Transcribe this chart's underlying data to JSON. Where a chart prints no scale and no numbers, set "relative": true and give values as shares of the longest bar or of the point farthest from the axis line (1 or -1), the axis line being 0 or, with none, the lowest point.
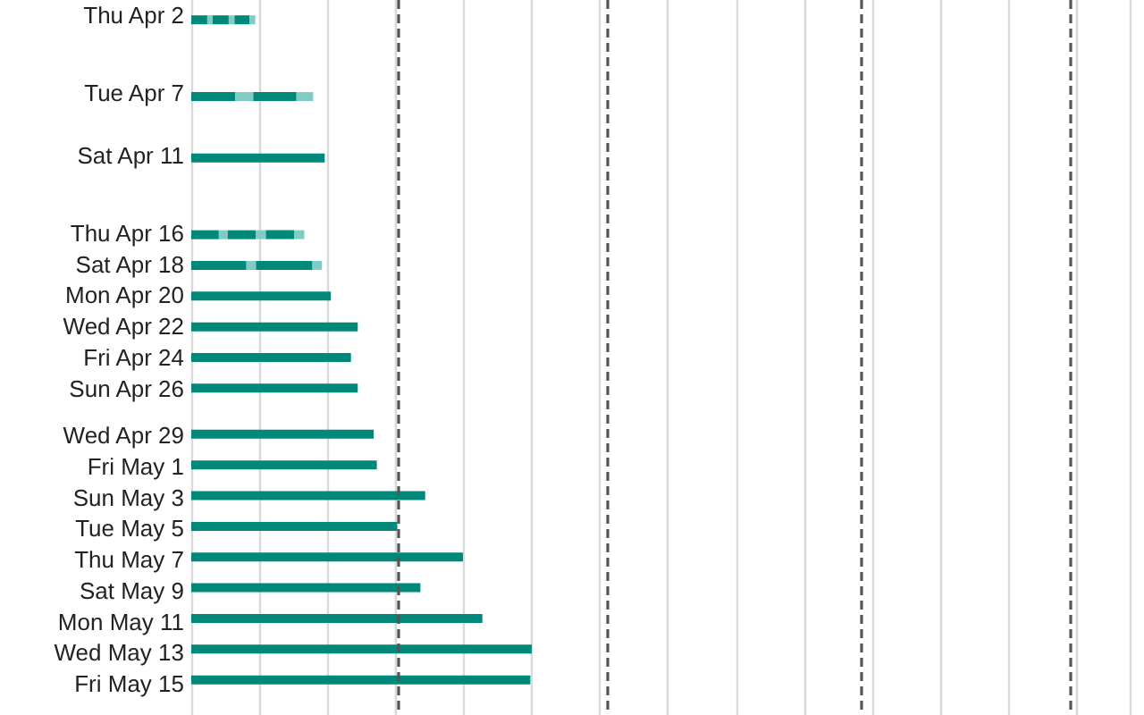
{
  "chart_data": {
    "type": "bar",
    "orientation": "horizontal",
    "stacked": true,
    "relative": true,
    "x": [
      "--04-02",
      "--04-07",
      "--04-11",
      "--04-16",
      "--04-18",
      "--04-20",
      "--04-22",
      "--04-24",
      "--04-26",
      "--04-29",
      "--05-01",
      "--05-03",
      "--05-05",
      "--05-07",
      "--05-09",
      "--05-11",
      "--05-13",
      "--05-15"
    ],
    "ylim": [
      "--05-17",
      "--04-01"
    ],
    "yticks": [
      {
        "value": "--04-02",
        "label": "Thu Apr 2"
      },
      {
        "value": "--04-07",
        "label": "Tue Apr 7"
      },
      {
        "value": "--04-11",
        "label": "Sat Apr 11"
      },
      {
        "value": "--04-16",
        "label": "Thu Apr 16"
      },
      {
        "value": "--04-18",
        "label": "Sat Apr 18"
      },
      {
        "value": "--04-20",
        "label": "Mon Apr 20"
      },
      {
        "value": "--04-22",
        "label": "Wed Apr 22"
      },
      {
        "value": "--04-24",
        "label": "Fri Apr 24"
      },
      {
        "value": "--04-26",
        "label": "Sun Apr 26"
      },
      {
        "value": "--04-29",
        "label": "Wed Apr 29"
      },
      {
        "value": "--05-01",
        "label": "Fri May 1"
      },
      {
        "value": "--05-03",
        "label": "Sun May 3"
      },
      {
        "value": "--05-05",
        "label": "Tue May 5"
      },
      {
        "value": "--05-07",
        "label": "Thu May 7"
      },
      {
        "value": "--05-09",
        "label": "Sat May 9"
      },
      {
        "value": "--05-11",
        "label": "Mon May 11"
      },
      {
        "value": "--05-13",
        "label": "Wed May 13"
      },
      {
        "value": "--05-15",
        "label": "Fri May 15"
      }
    ],
    "series": [
      {
        "color": "#00897b",
        "values": [
          0.047,
          0.129,
          0.392,
          0.081,
          0.162,
          0.41,
          0.489,
          0.469,
          0.489,
          0.536,
          0.545,
          0.687,
          0.605,
          0.798,
          0.673,
          0.855,
          1,
          0.996
        ]
      },
      {
        "color": "#80cbc4",
        "values": [
          0.016,
          0.053,
          null,
          0.026,
          0.028,
          null,
          null,
          null,
          null,
          null,
          null,
          null,
          null,
          null,
          null,
          null,
          null,
          null
        ]
      },
      {
        "color": "#00897b",
        "values": [
          0.047,
          0.127,
          null,
          0.082,
          0.166,
          null,
          null,
          null,
          null,
          null,
          null,
          null,
          null,
          null,
          null,
          null,
          null,
          null
        ]
      },
      {
        "color": "#80cbc4",
        "values": [
          0.017,
          0.049,
          null,
          0.03,
          0.028,
          null,
          null,
          null,
          null,
          null,
          null,
          null,
          null,
          null,
          null,
          null,
          null,
          null
        ]
      },
      {
        "color": "#00897b",
        "values": [
          0.044,
          null,
          null,
          0.083,
          null,
          null,
          null,
          null,
          null,
          null,
          null,
          null,
          null,
          null,
          null,
          null,
          null,
          null
        ]
      },
      {
        "color": "#80cbc4",
        "values": [
          0.017,
          null,
          null,
          0.03,
          null,
          null,
          null,
          null,
          null,
          null,
          null,
          null,
          null,
          null,
          null,
          null,
          null,
          null
        ]
      }
    ],
    "ref_lines": [
      {
        "axis": "x",
        "value": 0.61,
        "color": "#555555",
        "line_style": "dashed"
      },
      {
        "axis": "x",
        "value": 1.221,
        "color": "#555555",
        "line_style": "dashed"
      },
      {
        "axis": "x",
        "value": 1.965,
        "color": "#555555",
        "line_style": "dashed"
      },
      {
        "axis": "x",
        "value": 2.576,
        "color": "#555555",
        "line_style": "dashed"
      }
    ],
    "grid": "x",
    "tick_labels": "y"
  }
}
